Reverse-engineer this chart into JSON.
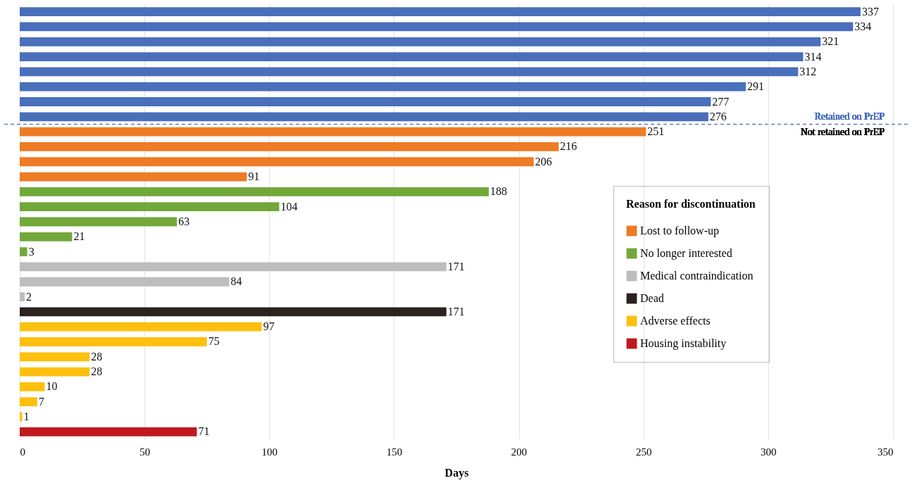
{
  "chart_data": {
    "type": "bar",
    "orientation": "horizontal",
    "xlabel": "Days",
    "legend_title": "Reason for discontinuation",
    "legend": "bottom right",
    "grid": "x",
    "tick_labels": "x",
    "data_labels": true,
    "categories": [
      null,
      null,
      null,
      null,
      null,
      null,
      null,
      null,
      null,
      null,
      null,
      null,
      null,
      null,
      null,
      null,
      null,
      null,
      null,
      null,
      null,
      null,
      null,
      null,
      null,
      null,
      null,
      null,
      null
    ],
    "xlim": [
      0,
      350
    ],
    "xticks": [
      0,
      50,
      100,
      150,
      200,
      250,
      300,
      350
    ],
    "series": [
      {
        "color": "#4a6fbb",
        "values": [
          337,
          334,
          321,
          314,
          312,
          291,
          277,
          276,
          null,
          null,
          null,
          null,
          null,
          null,
          null,
          null,
          null,
          null,
          null,
          null,
          null,
          null,
          null,
          null,
          null,
          null,
          null,
          null,
          null
        ]
      },
      {
        "name": "Lost to follow-up",
        "color": "#ee7b25",
        "values": [
          null,
          null,
          null,
          null,
          null,
          null,
          null,
          null,
          251,
          216,
          206,
          91,
          null,
          null,
          null,
          null,
          null,
          null,
          null,
          null,
          null,
          null,
          null,
          null,
          null,
          null,
          null,
          null,
          null
        ]
      },
      {
        "name": "No longer interested",
        "color": "#72a83a",
        "values": [
          null,
          null,
          null,
          null,
          null,
          null,
          null,
          null,
          null,
          null,
          null,
          null,
          188,
          104,
          63,
          21,
          3,
          null,
          null,
          null,
          null,
          null,
          null,
          null,
          null,
          null,
          null,
          null,
          null
        ]
      },
      {
        "name": "Medical contraindication",
        "color": "#bdbdbd",
        "values": [
          null,
          null,
          null,
          null,
          null,
          null,
          null,
          null,
          null,
          null,
          null,
          null,
          null,
          null,
          null,
          null,
          null,
          171,
          84,
          2,
          null,
          null,
          null,
          null,
          null,
          null,
          null,
          null,
          null
        ]
      },
      {
        "name": "Dead",
        "color": "#2b2220",
        "values": [
          null,
          null,
          null,
          null,
          null,
          null,
          null,
          null,
          null,
          null,
          null,
          null,
          null,
          null,
          null,
          null,
          null,
          null,
          null,
          null,
          171,
          null,
          null,
          null,
          null,
          null,
          null,
          null,
          null
        ]
      },
      {
        "name": "Adverse effects",
        "color": "#fdc00f",
        "values": [
          null,
          null,
          null,
          null,
          null,
          null,
          null,
          null,
          null,
          null,
          null,
          null,
          null,
          null,
          null,
          null,
          null,
          null,
          null,
          null,
          null,
          97,
          75,
          28,
          28,
          10,
          7,
          1,
          null
        ]
      },
      {
        "name": "Housing instability",
        "color": "#c0191c",
        "values": [
          null,
          null,
          null,
          null,
          null,
          null,
          null,
          null,
          null,
          null,
          null,
          null,
          null,
          null,
          null,
          null,
          null,
          null,
          null,
          null,
          null,
          null,
          null,
          null,
          null,
          null,
          null,
          null,
          71
        ]
      }
    ],
    "annotations": [
      "Retained on PrEP",
      "Not retained on PrEP"
    ]
  }
}
